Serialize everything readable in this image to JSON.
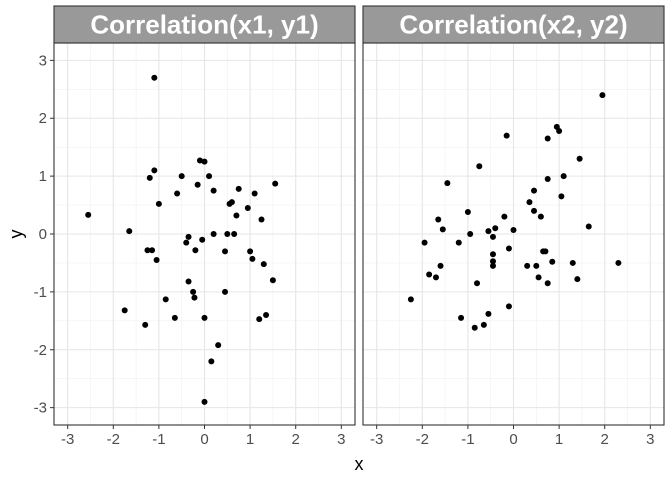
{
  "chart_data": {
    "type": "scatter",
    "xlabel": "x",
    "ylabel": "y",
    "xlim": [
      -3.3,
      3.3
    ],
    "ylim": [
      -3.3,
      3.3
    ],
    "x_ticks": [
      "-3",
      "-2",
      "-1",
      "0",
      "1",
      "2",
      "3"
    ],
    "y_ticks": [
      "-3",
      "-2",
      "-1",
      "0",
      "1",
      "2",
      "3"
    ],
    "grid": true,
    "point_color": "#000000",
    "strip_color": "#999999",
    "strip_text_color": "#ffffff",
    "panels": [
      {
        "title": "Correlation(x1, y1)",
        "points": [
          [
            -2.55,
            0.33
          ],
          [
            -1.75,
            -1.32
          ],
          [
            -1.65,
            0.05
          ],
          [
            -1.3,
            -1.57
          ],
          [
            -1.25,
            -0.28
          ],
          [
            -1.2,
            0.97
          ],
          [
            -1.15,
            -0.28
          ],
          [
            -1.1,
            1.1
          ],
          [
            -1.1,
            2.7
          ],
          [
            -1.05,
            -0.45
          ],
          [
            -1.0,
            0.52
          ],
          [
            -0.85,
            -1.13
          ],
          [
            -0.65,
            -1.45
          ],
          [
            -0.6,
            0.7
          ],
          [
            -0.5,
            1.0
          ],
          [
            -0.4,
            -0.15
          ],
          [
            -0.35,
            -0.05
          ],
          [
            -0.35,
            -0.82
          ],
          [
            -0.25,
            -1.0
          ],
          [
            -0.22,
            -1.1
          ],
          [
            -0.2,
            -0.28
          ],
          [
            -0.15,
            0.85
          ],
          [
            -0.1,
            1.27
          ],
          [
            -0.05,
            -0.1
          ],
          [
            0.0,
            -1.45
          ],
          [
            0.0,
            1.25
          ],
          [
            0.0,
            -2.9
          ],
          [
            0.1,
            1.0
          ],
          [
            0.15,
            -2.2
          ],
          [
            0.2,
            0.0
          ],
          [
            0.2,
            0.75
          ],
          [
            0.3,
            -1.92
          ],
          [
            0.45,
            -0.3
          ],
          [
            0.45,
            -1.0
          ],
          [
            0.5,
            0.0
          ],
          [
            0.55,
            0.52
          ],
          [
            0.6,
            0.55
          ],
          [
            0.65,
            0.0
          ],
          [
            0.7,
            0.32
          ],
          [
            0.75,
            0.78
          ],
          [
            0.95,
            0.45
          ],
          [
            1.0,
            -0.3
          ],
          [
            1.05,
            -0.43
          ],
          [
            1.1,
            0.7
          ],
          [
            1.2,
            -1.47
          ],
          [
            1.25,
            0.25
          ],
          [
            1.3,
            -0.52
          ],
          [
            1.35,
            -1.4
          ],
          [
            1.5,
            -0.8
          ],
          [
            1.55,
            0.87
          ]
        ]
      },
      {
        "title": "Correlation(x2, y2)",
        "points": [
          [
            -2.25,
            -1.13
          ],
          [
            -1.95,
            -0.15
          ],
          [
            -1.85,
            -0.7
          ],
          [
            -1.7,
            -0.75
          ],
          [
            -1.65,
            0.25
          ],
          [
            -1.6,
            -0.55
          ],
          [
            -1.55,
            0.08
          ],
          [
            -1.45,
            0.88
          ],
          [
            -1.2,
            -0.15
          ],
          [
            -1.15,
            -1.45
          ],
          [
            -1.0,
            0.38
          ],
          [
            -0.95,
            0.0
          ],
          [
            -0.85,
            -1.62
          ],
          [
            -0.8,
            -0.85
          ],
          [
            -0.75,
            1.17
          ],
          [
            -0.65,
            -1.57
          ],
          [
            -0.55,
            -1.38
          ],
          [
            -0.55,
            0.05
          ],
          [
            -0.45,
            -0.05
          ],
          [
            -0.45,
            -0.35
          ],
          [
            -0.45,
            -0.55
          ],
          [
            -0.45,
            -0.47
          ],
          [
            -0.4,
            0.1
          ],
          [
            -0.2,
            0.3
          ],
          [
            -0.15,
            1.7
          ],
          [
            -0.1,
            -0.25
          ],
          [
            -0.1,
            -1.25
          ],
          [
            0.0,
            0.07
          ],
          [
            0.3,
            -0.55
          ],
          [
            0.35,
            0.55
          ],
          [
            0.45,
            0.4
          ],
          [
            0.45,
            0.75
          ],
          [
            0.5,
            -0.55
          ],
          [
            0.55,
            -0.75
          ],
          [
            0.6,
            0.3
          ],
          [
            0.65,
            -0.3
          ],
          [
            0.7,
            -0.3
          ],
          [
            0.75,
            -0.85
          ],
          [
            0.75,
            1.65
          ],
          [
            0.75,
            0.95
          ],
          [
            0.85,
            -0.48
          ],
          [
            0.95,
            1.85
          ],
          [
            1.0,
            1.78
          ],
          [
            1.05,
            0.65
          ],
          [
            1.1,
            1.0
          ],
          [
            1.3,
            -0.5
          ],
          [
            1.4,
            -0.78
          ],
          [
            1.45,
            1.3
          ],
          [
            1.65,
            0.13
          ],
          [
            1.95,
            2.4
          ],
          [
            2.3,
            -0.5
          ]
        ]
      }
    ]
  }
}
